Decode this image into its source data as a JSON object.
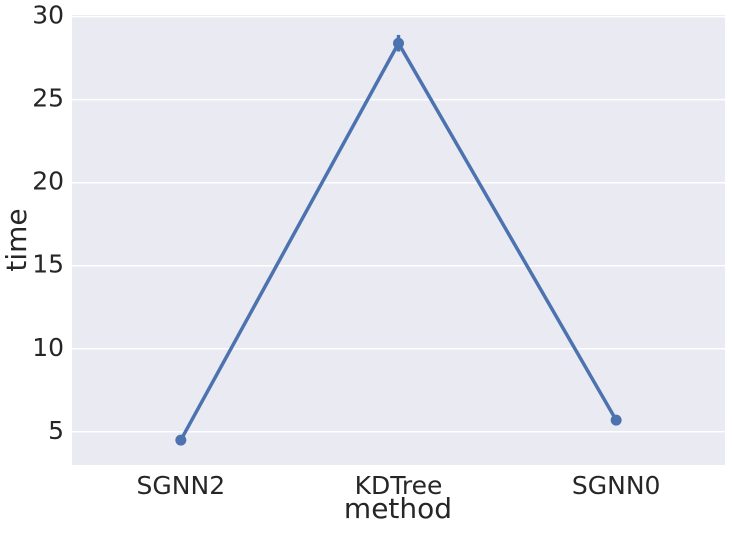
{
  "chart_data": {
    "type": "point",
    "x_label": "method",
    "y_label": "time",
    "categories": [
      "SGNN2",
      "KDTree",
      "SGNN0"
    ],
    "values": [
      4.5,
      28.4,
      5.7
    ],
    "errors": [
      0.1,
      0.5,
      0.1
    ],
    "color": "#4c72b0",
    "ylim": [
      3,
      30.1
    ],
    "yticks": [
      5,
      10,
      15,
      20,
      25,
      30
    ],
    "grid": true
  }
}
